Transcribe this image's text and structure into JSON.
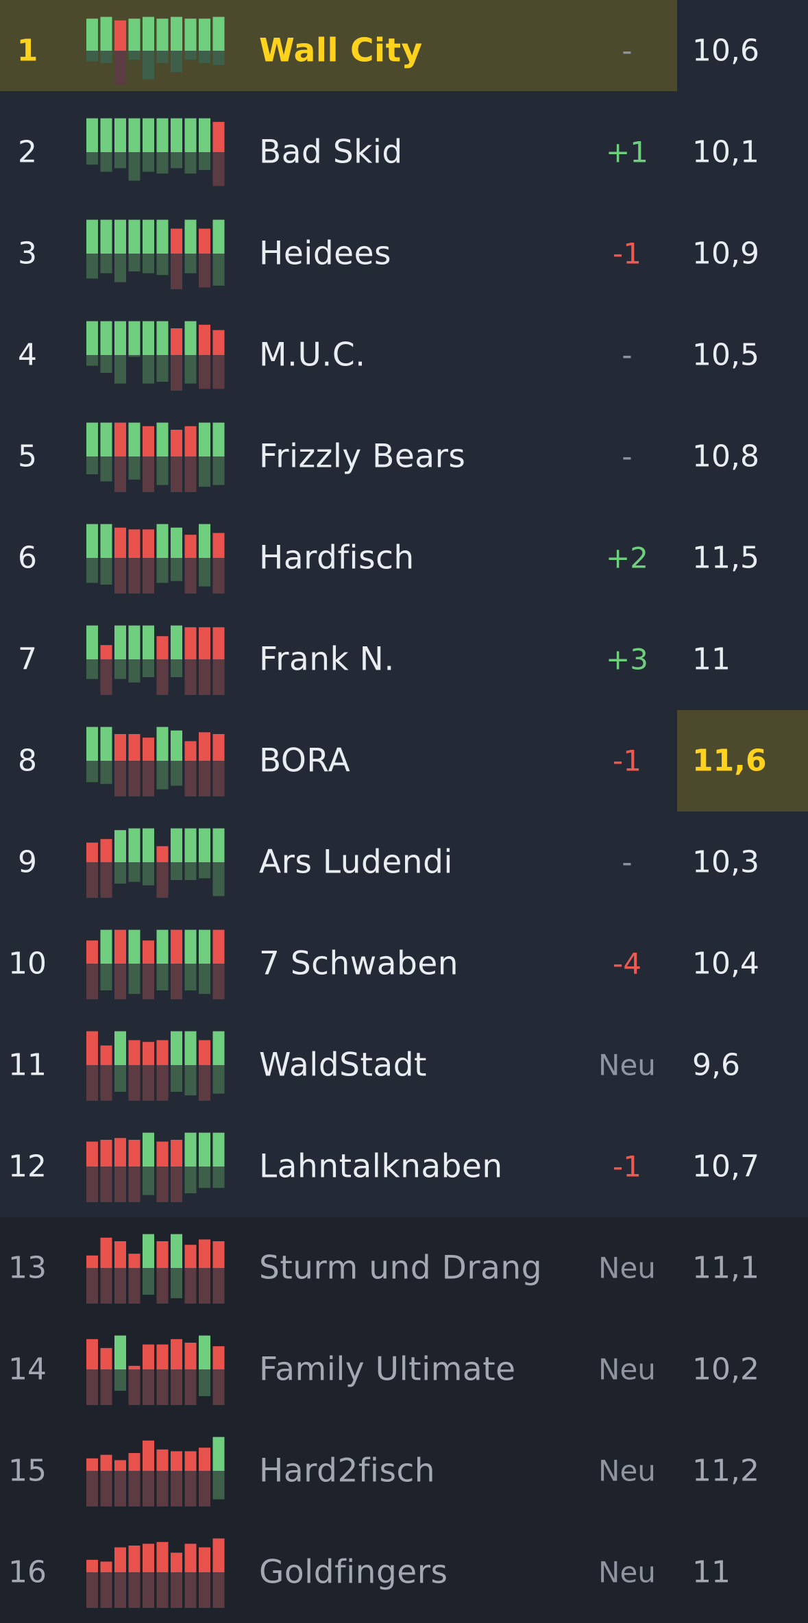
{
  "colors": {
    "win": "#6fcf7f",
    "win_dark": "#3e5f4a",
    "loss": "#e9534d",
    "loss_dark": "#5c3c42",
    "highlight": "#4c4a2c",
    "gold": "#ffd21e"
  },
  "rows": [
    {
      "rank": "1",
      "team": "Wall City",
      "change": "-",
      "change_type": "same",
      "score": "10,6",
      "highlight": "team",
      "dim": false,
      "form": [
        [
          "W",
          0.9,
          0.3
        ],
        [
          "W",
          0.95,
          0.35
        ],
        [
          "L",
          0.85,
          0.95
        ],
        [
          "W",
          0.9,
          0.25
        ],
        [
          "W",
          0.95,
          0.8
        ],
        [
          "W",
          0.9,
          0.35
        ],
        [
          "W",
          0.95,
          0.6
        ],
        [
          "W",
          0.9,
          0.25
        ],
        [
          "W",
          0.9,
          0.35
        ],
        [
          "W",
          0.95,
          0.4
        ]
      ]
    },
    {
      "rank": "2",
      "team": "Bad Skid",
      "change": "+1",
      "change_type": "up",
      "score": "10,1",
      "highlight": "",
      "dim": false,
      "form": [
        [
          "W",
          0.95,
          0.35
        ],
        [
          "W",
          0.95,
          0.55
        ],
        [
          "W",
          0.95,
          0.45
        ],
        [
          "W",
          0.95,
          0.8
        ],
        [
          "W",
          0.95,
          0.55
        ],
        [
          "W",
          0.95,
          0.6
        ],
        [
          "W",
          0.95,
          0.45
        ],
        [
          "W",
          0.95,
          0.6
        ],
        [
          "W",
          0.95,
          0.5
        ],
        [
          "L",
          0.85,
          0.95
        ]
      ]
    },
    {
      "rank": "3",
      "team": "Heidees",
      "change": "-1",
      "change_type": "down",
      "score": "10,9",
      "highlight": "",
      "dim": false,
      "form": [
        [
          "W",
          0.95,
          0.7
        ],
        [
          "W",
          0.95,
          0.55
        ],
        [
          "W",
          0.95,
          0.8
        ],
        [
          "W",
          0.95,
          0.5
        ],
        [
          "W",
          0.95,
          0.55
        ],
        [
          "W",
          0.95,
          0.6
        ],
        [
          "L",
          0.7,
          1.0
        ],
        [
          "W",
          0.95,
          0.55
        ],
        [
          "L",
          0.7,
          0.95
        ],
        [
          "W",
          0.95,
          0.9
        ]
      ]
    },
    {
      "rank": "4",
      "team": "M.U.C.",
      "change": "-",
      "change_type": "same",
      "score": "10,5",
      "highlight": "",
      "dim": false,
      "form": [
        [
          "W",
          0.95,
          0.3
        ],
        [
          "W",
          0.95,
          0.5
        ],
        [
          "W",
          0.95,
          0.8
        ],
        [
          "W",
          0.95,
          0.05
        ],
        [
          "W",
          0.95,
          0.8
        ],
        [
          "W",
          0.95,
          0.75
        ],
        [
          "L",
          0.75,
          1.0
        ],
        [
          "W",
          0.95,
          0.8
        ],
        [
          "L",
          0.85,
          0.95
        ],
        [
          "L",
          0.7,
          0.95
        ]
      ]
    },
    {
      "rank": "5",
      "team": "Frizzly Bears",
      "change": "-",
      "change_type": "same",
      "score": "10,8",
      "highlight": "",
      "dim": false,
      "form": [
        [
          "W",
          0.95,
          0.5
        ],
        [
          "W",
          0.95,
          0.7
        ],
        [
          "L",
          0.95,
          1.0
        ],
        [
          "W",
          0.95,
          0.65
        ],
        [
          "L",
          0.85,
          1.0
        ],
        [
          "W",
          0.95,
          0.8
        ],
        [
          "L",
          0.75,
          1.0
        ],
        [
          "L",
          0.85,
          1.0
        ],
        [
          "W",
          0.95,
          0.85
        ],
        [
          "W",
          0.95,
          0.8
        ]
      ]
    },
    {
      "rank": "6",
      "team": "Hardfisch",
      "change": "+2",
      "change_type": "up",
      "score": "11,5",
      "highlight": "",
      "dim": false,
      "form": [
        [
          "W",
          0.95,
          0.7
        ],
        [
          "W",
          0.95,
          0.75
        ],
        [
          "L",
          0.85,
          1.0
        ],
        [
          "L",
          0.8,
          1.0
        ],
        [
          "L",
          0.8,
          1.0
        ],
        [
          "W",
          0.95,
          0.7
        ],
        [
          "W",
          0.85,
          0.65
        ],
        [
          "L",
          0.65,
          1.0
        ],
        [
          "W",
          0.95,
          0.8
        ],
        [
          "L",
          0.7,
          1.0
        ]
      ]
    },
    {
      "rank": "7",
      "team": "Frank N.",
      "change": "+3",
      "change_type": "up",
      "score": "11",
      "highlight": "",
      "dim": false,
      "form": [
        [
          "W",
          0.95,
          0.55
        ],
        [
          "L",
          0.4,
          1.0
        ],
        [
          "W",
          0.95,
          0.55
        ],
        [
          "W",
          0.95,
          0.65
        ],
        [
          "W",
          0.95,
          0.5
        ],
        [
          "L",
          0.65,
          1.0
        ],
        [
          "W",
          0.95,
          0.5
        ],
        [
          "L",
          0.9,
          1.0
        ],
        [
          "L",
          0.9,
          1.0
        ],
        [
          "L",
          0.9,
          1.0
        ]
      ]
    },
    {
      "rank": "8",
      "team": "BORA",
      "change": "-1",
      "change_type": "down",
      "score": "11,6",
      "highlight": "score",
      "dim": false,
      "form": [
        [
          "W",
          0.95,
          0.6
        ],
        [
          "W",
          0.95,
          0.65
        ],
        [
          "L",
          0.75,
          1.0
        ],
        [
          "L",
          0.75,
          1.0
        ],
        [
          "L",
          0.65,
          1.0
        ],
        [
          "W",
          0.95,
          0.8
        ],
        [
          "W",
          0.85,
          0.7
        ],
        [
          "L",
          0.55,
          1.0
        ],
        [
          "L",
          0.8,
          1.0
        ],
        [
          "L",
          0.75,
          1.0
        ]
      ]
    },
    {
      "rank": "9",
      "team": "Ars Ludendi",
      "change": "-",
      "change_type": "same",
      "score": "10,3",
      "highlight": "",
      "dim": false,
      "form": [
        [
          "L",
          0.55,
          1.0
        ],
        [
          "L",
          0.65,
          1.0
        ],
        [
          "W",
          0.9,
          0.6
        ],
        [
          "W",
          0.95,
          0.55
        ],
        [
          "W",
          0.95,
          0.65
        ],
        [
          "L",
          0.45,
          1.0
        ],
        [
          "W",
          0.95,
          0.5
        ],
        [
          "W",
          0.95,
          0.5
        ],
        [
          "W",
          0.95,
          0.45
        ],
        [
          "W",
          0.95,
          0.95
        ]
      ]
    },
    {
      "rank": "10",
      "team": "7 Schwaben",
      "change": "-4",
      "change_type": "down",
      "score": "10,4",
      "highlight": "",
      "dim": false,
      "form": [
        [
          "L",
          0.65,
          1.0
        ],
        [
          "W",
          0.95,
          0.75
        ],
        [
          "L",
          0.95,
          1.0
        ],
        [
          "W",
          0.95,
          0.85
        ],
        [
          "L",
          0.65,
          1.0
        ],
        [
          "W",
          0.95,
          0.75
        ],
        [
          "L",
          0.95,
          1.0
        ],
        [
          "W",
          0.95,
          0.75
        ],
        [
          "W",
          0.95,
          0.85
        ],
        [
          "L",
          0.95,
          1.0
        ]
      ]
    },
    {
      "rank": "11",
      "team": "WaldStadt",
      "change": "Neu",
      "change_type": "neu",
      "score": "9,6",
      "highlight": "",
      "dim": false,
      "form": [
        [
          "L",
          0.95,
          1.0
        ],
        [
          "L",
          0.55,
          1.0
        ],
        [
          "W",
          0.95,
          0.75
        ],
        [
          "L",
          0.7,
          1.0
        ],
        [
          "L",
          0.65,
          1.0
        ],
        [
          "L",
          0.7,
          1.0
        ],
        [
          "W",
          0.95,
          0.75
        ],
        [
          "W",
          0.95,
          0.85
        ],
        [
          "L",
          0.7,
          1.0
        ],
        [
          "W",
          0.95,
          0.8
        ]
      ]
    },
    {
      "rank": "12",
      "team": "Lahntalknaben",
      "change": "-1",
      "change_type": "down",
      "score": "10,7",
      "highlight": "",
      "dim": false,
      "form": [
        [
          "L",
          0.7,
          1.0
        ],
        [
          "L",
          0.75,
          1.0
        ],
        [
          "L",
          0.8,
          1.0
        ],
        [
          "L",
          0.75,
          1.0
        ],
        [
          "W",
          0.95,
          0.8
        ],
        [
          "L",
          0.7,
          1.0
        ],
        [
          "L",
          0.75,
          1.0
        ],
        [
          "W",
          0.95,
          0.75
        ],
        [
          "W",
          0.95,
          0.6
        ],
        [
          "W",
          0.95,
          0.6
        ]
      ]
    },
    {
      "rank": "13",
      "team": "Sturm und Drang",
      "change": "Neu",
      "change_type": "neu",
      "score": "11,1",
      "highlight": "",
      "dim": true,
      "form": [
        [
          "L",
          0.35,
          1.0
        ],
        [
          "L",
          0.85,
          1.0
        ],
        [
          "L",
          0.75,
          1.0
        ],
        [
          "L",
          0.4,
          1.0
        ],
        [
          "W",
          0.95,
          0.75
        ],
        [
          "L",
          0.75,
          1.0
        ],
        [
          "W",
          0.95,
          0.85
        ],
        [
          "L",
          0.65,
          1.0
        ],
        [
          "L",
          0.8,
          1.0
        ],
        [
          "L",
          0.75,
          1.0
        ]
      ]
    },
    {
      "rank": "14",
      "team": "Family Ultimate",
      "change": "Neu",
      "change_type": "neu",
      "score": "10,2",
      "highlight": "",
      "dim": true,
      "form": [
        [
          "L",
          0.85,
          1.0
        ],
        [
          "L",
          0.6,
          1.0
        ],
        [
          "W",
          0.95,
          0.6
        ],
        [
          "L",
          0.1,
          1.0
        ],
        [
          "L",
          0.7,
          1.0
        ],
        [
          "L",
          0.7,
          1.0
        ],
        [
          "L",
          0.85,
          1.0
        ],
        [
          "L",
          0.75,
          1.0
        ],
        [
          "W",
          0.95,
          0.75
        ],
        [
          "L",
          0.65,
          1.0
        ]
      ]
    },
    {
      "rank": "15",
      "team": "Hard2fisch",
      "change": "Neu",
      "change_type": "neu",
      "score": "11,2",
      "highlight": "",
      "dim": true,
      "form": [
        [
          "L",
          0.35,
          1.0
        ],
        [
          "L",
          0.45,
          1.0
        ],
        [
          "L",
          0.3,
          1.0
        ],
        [
          "L",
          0.5,
          1.0
        ],
        [
          "L",
          0.85,
          1.0
        ],
        [
          "L",
          0.6,
          1.0
        ],
        [
          "L",
          0.55,
          1.0
        ],
        [
          "L",
          0.55,
          1.0
        ],
        [
          "L",
          0.65,
          1.0
        ],
        [
          "W",
          0.95,
          0.8
        ]
      ]
    },
    {
      "rank": "16",
      "team": "Goldfingers",
      "change": "Neu",
      "change_type": "neu",
      "score": "11",
      "highlight": "",
      "dim": true,
      "form": [
        [
          "L",
          0.35,
          1.0
        ],
        [
          "L",
          0.3,
          1.0
        ],
        [
          "L",
          0.7,
          1.0
        ],
        [
          "L",
          0.75,
          1.0
        ],
        [
          "L",
          0.8,
          1.0
        ],
        [
          "L",
          0.85,
          1.0
        ],
        [
          "L",
          0.55,
          1.0
        ],
        [
          "L",
          0.8,
          1.0
        ],
        [
          "L",
          0.7,
          1.0
        ],
        [
          "L",
          0.95,
          1.0
        ]
      ]
    }
  ]
}
